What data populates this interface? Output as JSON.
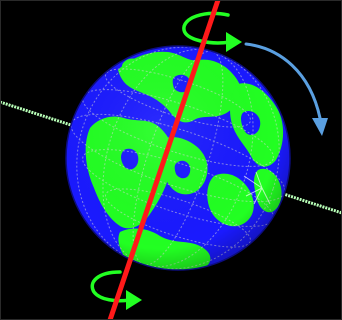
{
  "scene": {
    "background": "#000000",
    "ocean_color": "#1a1aff",
    "land_color": "#22ff22",
    "rotation_axis_color": "#ff1a1a",
    "ecliptic_line_color": "#b8ffb8",
    "grid_color": "#d8d8d8",
    "spin_arrow_color": "#22ff22",
    "direction_arrow_color": "#5a9fe0",
    "spin_arrow_icon": "curved-rotation-arrow-icon",
    "direction_arrow_icon": "curved-direction-arrow-icon"
  }
}
